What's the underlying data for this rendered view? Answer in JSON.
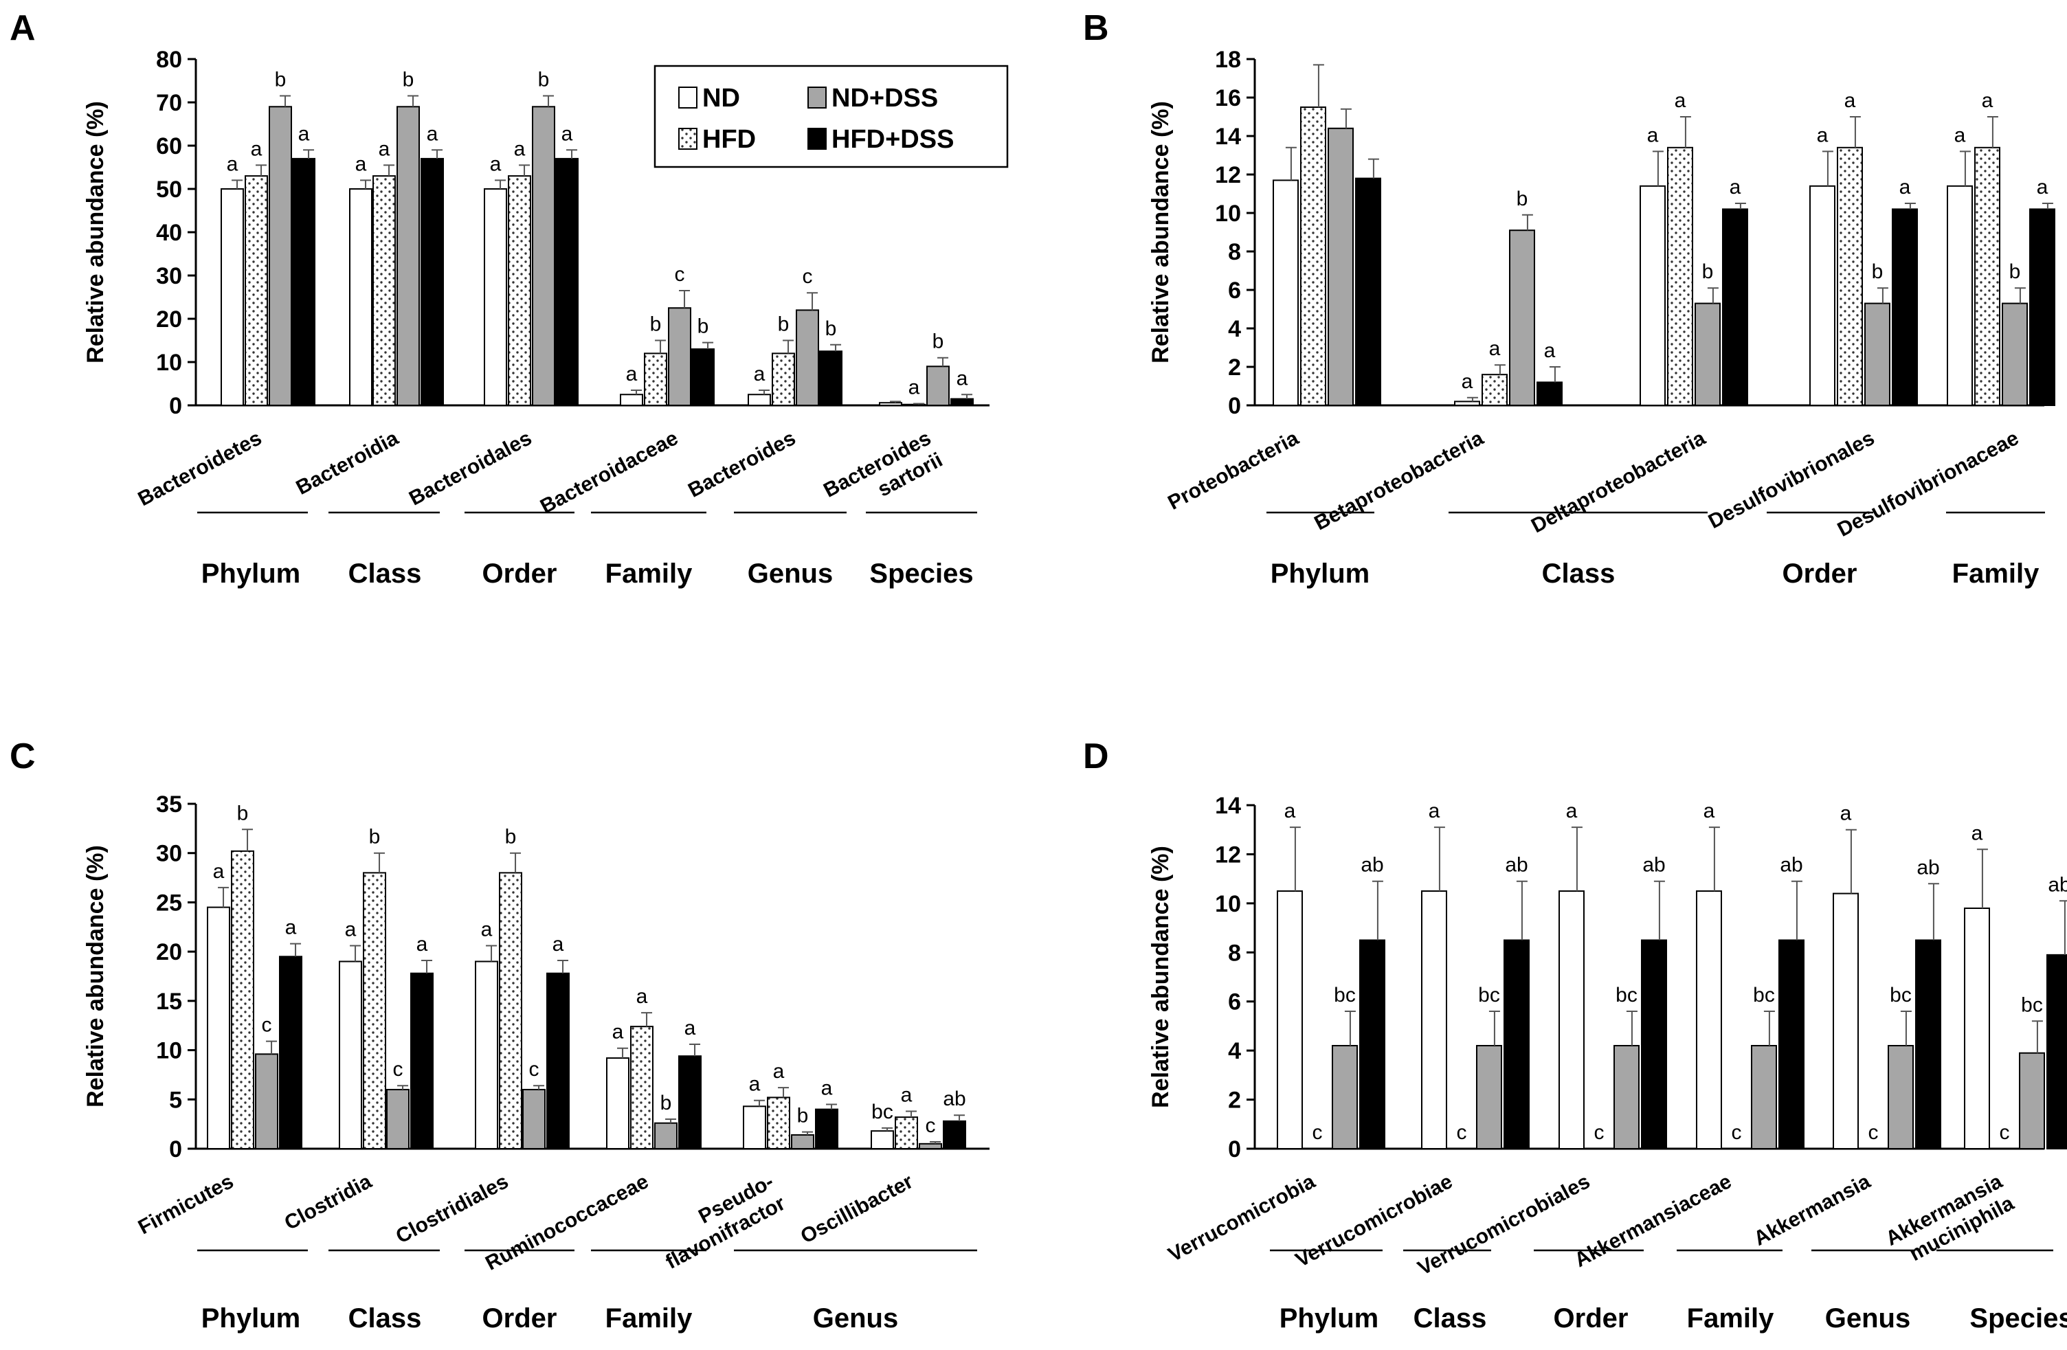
{
  "legend": {
    "items": [
      {
        "label": "ND",
        "series": "nd"
      },
      {
        "label": "ND+DSS",
        "series": "nddss"
      },
      {
        "label": "HFD",
        "series": "hfd"
      },
      {
        "label": "HFD+DSS",
        "series": "hfddss"
      }
    ]
  },
  "styles": {
    "nd": {
      "fill": "#ffffff"
    },
    "hfd": {
      "fill": "dots"
    },
    "nddss": {
      "fill": "#a6a6a6"
    },
    "hfddss": {
      "fill": "#000000"
    }
  },
  "chart_data": [
    {
      "panel": "A",
      "type": "bar",
      "ylabel": "Relative abundance (%)",
      "ylim": [
        0,
        80
      ],
      "yticks": [
        0,
        10,
        20,
        30,
        40,
        50,
        60,
        70,
        80
      ],
      "categories": [
        "Bacteroidetes",
        "Bacteroidia",
        "Bacteroidales",
        "Bacteroidaceae",
        "Bacteroides",
        "Bacteroides sartorii"
      ],
      "series": [
        {
          "name": "ND",
          "key": "nd",
          "values": [
            50,
            50,
            50,
            2.5,
            2.5,
            0.6
          ],
          "errors": [
            2,
            2,
            2,
            1,
            1,
            0.3
          ],
          "sig": [
            "a",
            "a",
            "a",
            "a",
            "a",
            ""
          ]
        },
        {
          "name": "HFD",
          "key": "hfd",
          "values": [
            53,
            53,
            53,
            12,
            12,
            0.2
          ],
          "errors": [
            2.5,
            2.5,
            2.5,
            3,
            3,
            0.2
          ],
          "sig": [
            "a",
            "a",
            "a",
            "b",
            "b",
            "a"
          ]
        },
        {
          "name": "ND+DSS",
          "key": "nddss",
          "values": [
            69,
            69,
            69,
            22.5,
            22,
            9
          ],
          "errors": [
            2.5,
            2.5,
            2.5,
            4,
            4,
            2
          ],
          "sig": [
            "b",
            "b",
            "b",
            "c",
            "c",
            "b"
          ]
        },
        {
          "name": "HFD+DSS",
          "key": "hfddss",
          "values": [
            57,
            57,
            57,
            13,
            12.5,
            1.5
          ],
          "errors": [
            2,
            2,
            2,
            1.5,
            1.5,
            1
          ],
          "sig": [
            "a",
            "a",
            "a",
            "b",
            "b",
            "a"
          ]
        }
      ],
      "groups": [
        {
          "label": "Phylum",
          "cats": [
            0,
            0
          ]
        },
        {
          "label": "Class",
          "cats": [
            1,
            1
          ]
        },
        {
          "label": "Order",
          "cats": [
            2,
            2
          ]
        },
        {
          "label": "Family",
          "cats": [
            3,
            3
          ]
        },
        {
          "label": "Genus",
          "cats": [
            4,
            4
          ]
        },
        {
          "label": "Species",
          "cats": [
            5,
            5
          ]
        }
      ]
    },
    {
      "panel": "B",
      "type": "bar",
      "ylabel": "Relative abundance (%)",
      "ylim": [
        0,
        18
      ],
      "yticks": [
        0,
        2,
        4,
        6,
        8,
        10,
        12,
        14,
        16,
        18
      ],
      "categories": [
        "Proteobacteria",
        "Betaproteobacteria",
        "Deltaproteobacteria",
        "Desulfovibrionales",
        "Desulfovibrionaceae"
      ],
      "series": [
        {
          "name": "ND",
          "key": "nd",
          "values": [
            11.7,
            0.2,
            11.4,
            11.4,
            11.4
          ],
          "errors": [
            1.7,
            0.2,
            1.8,
            1.8,
            1.8
          ],
          "sig": [
            "",
            "a",
            "a",
            "a",
            "a"
          ]
        },
        {
          "name": "HFD",
          "key": "hfd",
          "values": [
            15.5,
            1.6,
            13.4,
            13.4,
            13.4
          ],
          "errors": [
            2.2,
            0.5,
            1.6,
            1.6,
            1.6
          ],
          "sig": [
            "",
            "a",
            "a",
            "a",
            "a"
          ]
        },
        {
          "name": "ND+DSS",
          "key": "nddss",
          "values": [
            14.4,
            9.1,
            5.3,
            5.3,
            5.3
          ],
          "errors": [
            1.0,
            0.8,
            0.8,
            0.8,
            0.8
          ],
          "sig": [
            "",
            "b",
            "b",
            "b",
            "b"
          ]
        },
        {
          "name": "HFD+DSS",
          "key": "hfddss",
          "values": [
            11.8,
            1.2,
            10.2,
            10.2,
            10.2
          ],
          "errors": [
            1.0,
            0.8,
            0.3,
            0.3,
            0.3
          ],
          "sig": [
            "",
            "a",
            "a",
            "a",
            "a"
          ]
        }
      ],
      "groups": [
        {
          "label": "Phylum",
          "cats": [
            0,
            0
          ]
        },
        {
          "label": "Class",
          "cats": [
            1,
            2
          ]
        },
        {
          "label": "Order",
          "cats": [
            3,
            3
          ]
        },
        {
          "label": "Family",
          "cats": [
            4,
            4
          ]
        }
      ]
    },
    {
      "panel": "C",
      "type": "bar",
      "ylabel": "Relative abundance (%)",
      "ylim": [
        0,
        35
      ],
      "yticks": [
        0,
        5,
        10,
        15,
        20,
        25,
        30,
        35
      ],
      "categories": [
        "Firmicutes",
        "Clostridia",
        "Clostridiales",
        "Ruminococcaceae",
        "Pseudo-flavonifractor",
        "Oscillibacter"
      ],
      "series": [
        {
          "name": "ND",
          "key": "nd",
          "values": [
            24.5,
            19,
            19,
            9.2,
            4.3,
            1.8
          ],
          "errors": [
            2,
            1.6,
            1.6,
            1,
            0.6,
            0.3
          ],
          "sig": [
            "a",
            "a",
            "a",
            "a",
            "a",
            "bc"
          ]
        },
        {
          "name": "HFD",
          "key": "hfd",
          "values": [
            30.2,
            28,
            28,
            12.4,
            5.2,
            3.2
          ],
          "errors": [
            2.2,
            2,
            2,
            1.4,
            1,
            0.6
          ],
          "sig": [
            "b",
            "b",
            "b",
            "a",
            "a",
            "a"
          ]
        },
        {
          "name": "ND+DSS",
          "key": "nddss",
          "values": [
            9.6,
            6,
            6,
            2.6,
            1.4,
            0.5
          ],
          "errors": [
            1.3,
            0.4,
            0.4,
            0.4,
            0.3,
            0.2
          ],
          "sig": [
            "c",
            "c",
            "c",
            "b",
            "b",
            "c"
          ]
        },
        {
          "name": "HFD+DSS",
          "key": "hfddss",
          "values": [
            19.5,
            17.8,
            17.8,
            9.4,
            4,
            2.8
          ],
          "errors": [
            1.3,
            1.3,
            1.3,
            1.2,
            0.5,
            0.6
          ],
          "sig": [
            "a",
            "a",
            "a",
            "a",
            "a",
            "ab"
          ]
        }
      ],
      "groups": [
        {
          "label": "Phylum",
          "cats": [
            0,
            0
          ]
        },
        {
          "label": "Class",
          "cats": [
            1,
            1
          ]
        },
        {
          "label": "Order",
          "cats": [
            2,
            2
          ]
        },
        {
          "label": "Family",
          "cats": [
            3,
            3
          ]
        },
        {
          "label": "Genus",
          "cats": [
            4,
            5
          ]
        }
      ]
    },
    {
      "panel": "D",
      "type": "bar",
      "ylabel": "Relative abundance (%)",
      "ylim": [
        0,
        14
      ],
      "yticks": [
        0,
        2,
        4,
        6,
        8,
        10,
        12,
        14
      ],
      "categories": [
        "Verrucomicrobia",
        "Verrucomicrobiae",
        "Verrucomicrobiales",
        "Akkermansiaceae",
        "Akkermansia",
        "Akkermansia muciniphila"
      ],
      "series": [
        {
          "name": "ND",
          "key": "nd",
          "values": [
            10.5,
            10.5,
            10.5,
            10.5,
            10.4,
            9.8
          ],
          "errors": [
            2.6,
            2.6,
            2.6,
            2.6,
            2.6,
            2.4
          ],
          "sig": [
            "a",
            "a",
            "a",
            "a",
            "a",
            "a"
          ]
        },
        {
          "name": "HFD",
          "key": "hfd",
          "values": [
            0,
            0,
            0,
            0,
            0,
            0
          ],
          "errors": [
            0,
            0,
            0,
            0,
            0,
            0
          ],
          "sig": [
            "c",
            "c",
            "c",
            "c",
            "c",
            "c"
          ]
        },
        {
          "name": "ND+DSS",
          "key": "nddss",
          "values": [
            4.2,
            4.2,
            4.2,
            4.2,
            4.2,
            3.9
          ],
          "errors": [
            1.4,
            1.4,
            1.4,
            1.4,
            1.4,
            1.3
          ],
          "sig": [
            "bc",
            "bc",
            "bc",
            "bc",
            "bc",
            "bc"
          ]
        },
        {
          "name": "HFD+DSS",
          "key": "hfddss",
          "values": [
            8.5,
            8.5,
            8.5,
            8.5,
            8.5,
            7.9
          ],
          "errors": [
            2.4,
            2.4,
            2.4,
            2.4,
            2.3,
            2.2
          ],
          "sig": [
            "ab",
            "ab",
            "ab",
            "ab",
            "ab",
            "ab"
          ]
        }
      ],
      "groups": [
        {
          "label": "Phylum",
          "cats": [
            0,
            0
          ]
        },
        {
          "label": "Class",
          "cats": [
            1,
            1
          ]
        },
        {
          "label": "Order",
          "cats": [
            2,
            2
          ]
        },
        {
          "label": "Family",
          "cats": [
            3,
            3
          ]
        },
        {
          "label": "Genus",
          "cats": [
            4,
            4
          ]
        },
        {
          "label": "Species",
          "cats": [
            5,
            5
          ]
        }
      ]
    }
  ]
}
